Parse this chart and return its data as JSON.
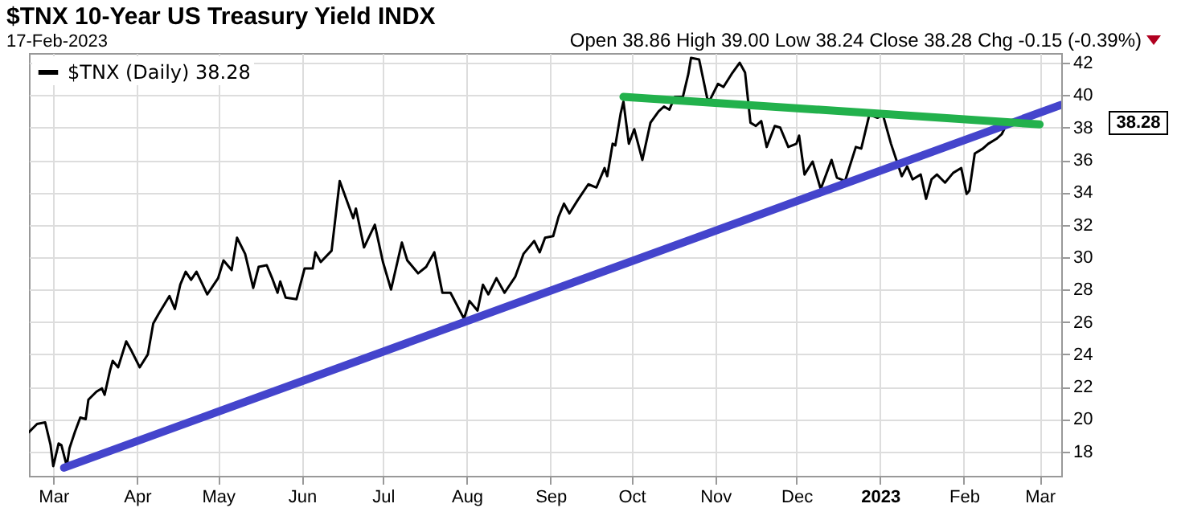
{
  "chart_data": {
    "type": "line",
    "title": "$TNX 10-Year US Treasury Yield INDX",
    "subtitle": "17-Feb-2023",
    "annotations": [
      "Open 38.86 High 39.00 Low 38.24 Close 38.28 Chg -0.15 (-0.39%)",
      "38.28"
    ],
    "series": [
      {
        "name": "$TNX (Daily) 38.28",
        "color": "#000000",
        "x": [
          "2022-02-20",
          "2022-02-23",
          "2022-02-26",
          "2022-02-28",
          "2022-03-01",
          "2022-03-03",
          "2022-03-04",
          "2022-03-06",
          "2022-03-07",
          "2022-03-09",
          "2022-03-11",
          "2022-03-13",
          "2022-03-14",
          "2022-03-17",
          "2022-03-19",
          "2022-03-20",
          "2022-03-22",
          "2022-03-23",
          "2022-03-25",
          "2022-03-28",
          "2022-03-30",
          "2022-04-02",
          "2022-04-05",
          "2022-04-07",
          "2022-04-09",
          "2022-04-13",
          "2022-04-15",
          "2022-04-17",
          "2022-04-19",
          "2022-04-21",
          "2022-04-23",
          "2022-04-27",
          "2022-05-01",
          "2022-05-03",
          "2022-05-06",
          "2022-05-08",
          "2022-05-11",
          "2022-05-14",
          "2022-05-16",
          "2022-05-19",
          "2022-05-21",
          "2022-05-23",
          "2022-05-24",
          "2022-05-26",
          "2022-05-30",
          "2022-06-02",
          "2022-06-05",
          "2022-06-06",
          "2022-06-08",
          "2022-06-12",
          "2022-06-15",
          "2022-06-20",
          "2022-06-21",
          "2022-06-24",
          "2022-06-28",
          "2022-07-01",
          "2022-07-04",
          "2022-07-08",
          "2022-07-10",
          "2022-07-14",
          "2022-07-17",
          "2022-07-20",
          "2022-07-23",
          "2022-07-26",
          "2022-07-31",
          "2022-08-02",
          "2022-08-05",
          "2022-08-07",
          "2022-08-09",
          "2022-08-12",
          "2022-08-15",
          "2022-08-19",
          "2022-08-22",
          "2022-08-26",
          "2022-08-28",
          "2022-08-30",
          "2022-09-02",
          "2022-09-04",
          "2022-09-06",
          "2022-09-08",
          "2022-09-11",
          "2022-09-15",
          "2022-09-18",
          "2022-09-21",
          "2022-09-22",
          "2022-09-24",
          "2022-09-25",
          "2022-09-27",
          "2022-09-28",
          "2022-09-30",
          "2022-10-02",
          "2022-10-05",
          "2022-10-08",
          "2022-10-11",
          "2022-10-13",
          "2022-10-15",
          "2022-10-17",
          "2022-10-20",
          "2022-10-22",
          "2022-10-23",
          "2022-10-26",
          "2022-10-29",
          "2022-10-30",
          "2022-11-02",
          "2022-11-04",
          "2022-11-07",
          "2022-11-10",
          "2022-11-12",
          "2022-11-14",
          "2022-11-16",
          "2022-11-18",
          "2022-11-20",
          "2022-11-23",
          "2022-11-25",
          "2022-11-28",
          "2022-12-01",
          "2022-12-02",
          "2022-12-04",
          "2022-12-07",
          "2022-12-10",
          "2022-12-14",
          "2022-12-16",
          "2022-12-19",
          "2022-12-23",
          "2022-12-25",
          "2022-12-28",
          "2022-12-31",
          "2023-01-02",
          "2023-01-05",
          "2023-01-09",
          "2023-01-11",
          "2023-01-13",
          "2023-01-16",
          "2023-01-18",
          "2023-01-20",
          "2023-01-22",
          "2023-01-25",
          "2023-01-28",
          "2023-01-31",
          "2023-02-02",
          "2023-02-03",
          "2023-02-05",
          "2023-02-08",
          "2023-02-10",
          "2023-02-13",
          "2023-02-15",
          "2023-02-17"
        ],
        "values": [
          19.2,
          19.7,
          19.8,
          18.4,
          17.1,
          18.5,
          18.4,
          17.1,
          18.2,
          19.2,
          20.1,
          20.0,
          21.2,
          21.7,
          21.9,
          21.5,
          23.0,
          23.6,
          23.2,
          24.8,
          24.2,
          23.2,
          24.0,
          25.9,
          26.5,
          27.6,
          26.8,
          28.3,
          29.1,
          28.6,
          29.1,
          27.7,
          28.7,
          29.8,
          29.2,
          31.2,
          30.2,
          28.1,
          29.4,
          29.5,
          28.7,
          27.8,
          28.5,
          27.5,
          27.4,
          29.3,
          29.3,
          30.3,
          29.7,
          30.4,
          34.7,
          32.4,
          33.0,
          30.6,
          32.0,
          29.7,
          28.0,
          30.9,
          29.8,
          29.0,
          29.4,
          30.3,
          27.8,
          27.8,
          26.2,
          27.3,
          26.7,
          28.3,
          27.7,
          28.7,
          27.8,
          28.8,
          30.2,
          31.0,
          30.3,
          31.2,
          31.3,
          32.5,
          33.3,
          32.7,
          33.5,
          34.5,
          34.3,
          35.5,
          35.0,
          37.0,
          36.9,
          38.9,
          39.6,
          37.0,
          37.9,
          36.0,
          38.3,
          39.0,
          39.3,
          39.1,
          39.9,
          39.9,
          41.3,
          42.3,
          42.2,
          39.8,
          39.7,
          40.7,
          40.5,
          41.3,
          42.0,
          41.4,
          38.3,
          38.1,
          38.4,
          36.8,
          38.1,
          38.0,
          36.8,
          37.0,
          37.5,
          35.1,
          35.9,
          34.2,
          36.0,
          34.9,
          34.7,
          36.8,
          36.7,
          38.8,
          38.6,
          38.8,
          37.0,
          35.0,
          35.6,
          34.8,
          35.1,
          33.6,
          34.8,
          35.1,
          34.6,
          35.2,
          35.5,
          33.9,
          34.1,
          36.4,
          36.7,
          37.0,
          37.3,
          37.6,
          38.28
        ]
      },
      {
        "type": "line",
        "color": "#4444cc",
        "x": [
          "2022-03-05",
          "2023-03-09"
        ],
        "values": [
          17.0,
          39.4
        ]
      },
      {
        "type": "line",
        "color": "#22b14c",
        "x": [
          "2022-09-28",
          "2023-03-01"
        ],
        "values": [
          39.9,
          38.2
        ]
      }
    ],
    "xlim": [
      "2022-02-20",
      "2023-03-09"
    ],
    "xticks": [
      {
        "value": "2022-03-01",
        "label": "Mar"
      },
      {
        "value": "2022-04-01",
        "label": "Apr"
      },
      {
        "value": "2022-05-01",
        "label": "May"
      },
      {
        "value": "2022-06-01",
        "label": "Jun"
      },
      {
        "value": "2022-07-01",
        "label": "Jul"
      },
      {
        "value": "2022-08-01",
        "label": "Aug"
      },
      {
        "value": "2022-09-01",
        "label": "Sep"
      },
      {
        "value": "2022-10-01",
        "label": "Oct"
      },
      {
        "value": "2022-11-01",
        "label": "Nov"
      },
      {
        "value": "2022-12-01",
        "label": "Dec"
      },
      {
        "value": "2023-01-01",
        "label": "2023"
      },
      {
        "value": "2023-02-01",
        "label": "Feb"
      },
      {
        "value": "2023-03-01",
        "label": "Mar"
      }
    ],
    "ylim": [
      16.5,
      42.6
    ],
    "yticks": [
      18,
      20,
      22,
      24,
      26,
      28,
      30,
      32,
      34,
      36,
      38,
      40,
      42
    ],
    "grid": true,
    "legend": "top left"
  }
}
